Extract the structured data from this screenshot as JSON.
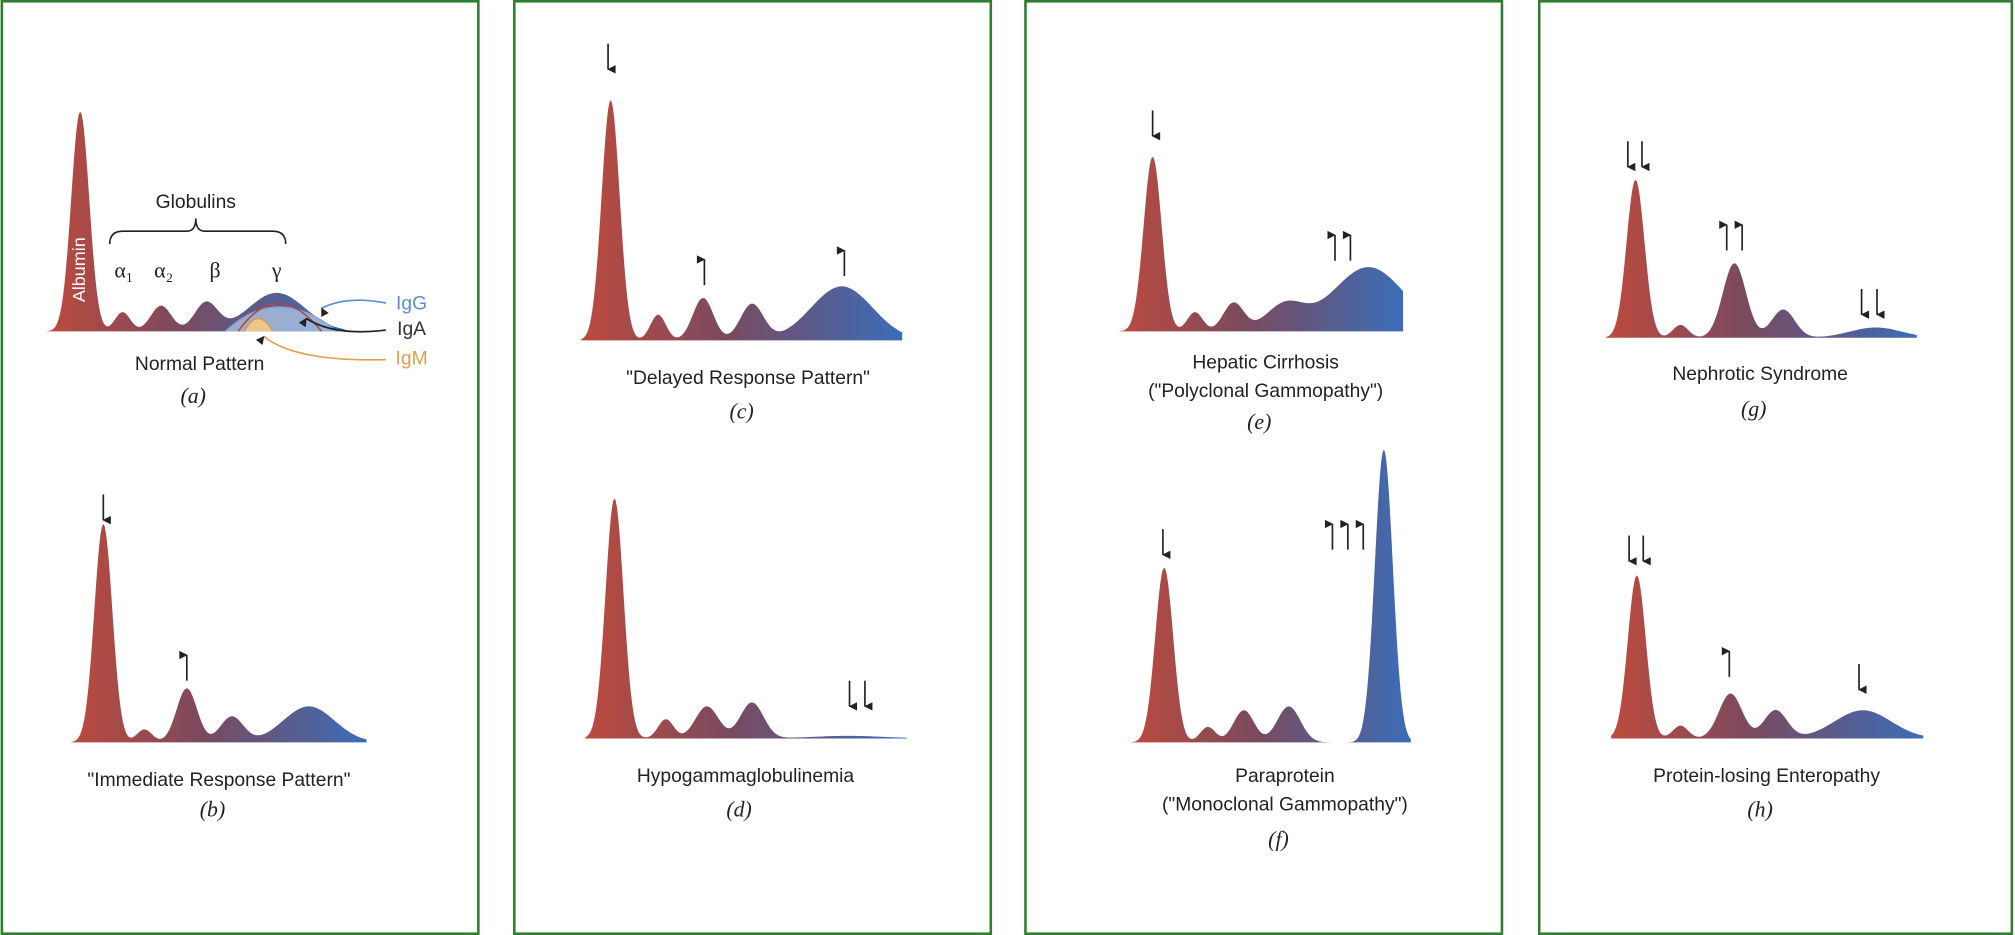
{
  "albumin_label": "Albumin",
  "globulins_label": "Globulins",
  "fractions": [
    "α₁",
    "α₂",
    "β",
    "γ"
  ],
  "immunoglobulins": [
    "IgG",
    "IgA",
    "IgM"
  ],
  "patterns": [
    {
      "caption": [
        "Normal Pattern"
      ],
      "letter": "(a)"
    },
    {
      "caption": [
        "\"Immediate Response Pattern\""
      ],
      "letter": "(b)"
    },
    {
      "caption": [
        "\"Delayed Response Pattern\""
      ],
      "letter": "(c)"
    },
    {
      "caption": [
        "Hypogammaglobulinemia"
      ],
      "letter": "(d)"
    },
    {
      "caption": [
        "Hepatic Cirrhosis",
        "(\"Polyclonal Gammopathy\")"
      ],
      "letter": "(e)"
    },
    {
      "caption": [
        "Paraprotein",
        "(\"Monoclonal Gammopathy\")"
      ],
      "letter": "(f)"
    },
    {
      "caption": [
        "Nephrotic Syndrome"
      ],
      "letter": "(g)"
    },
    {
      "caption": [
        "Protein-losing Enteropathy"
      ],
      "letter": "(h)"
    }
  ]
}
